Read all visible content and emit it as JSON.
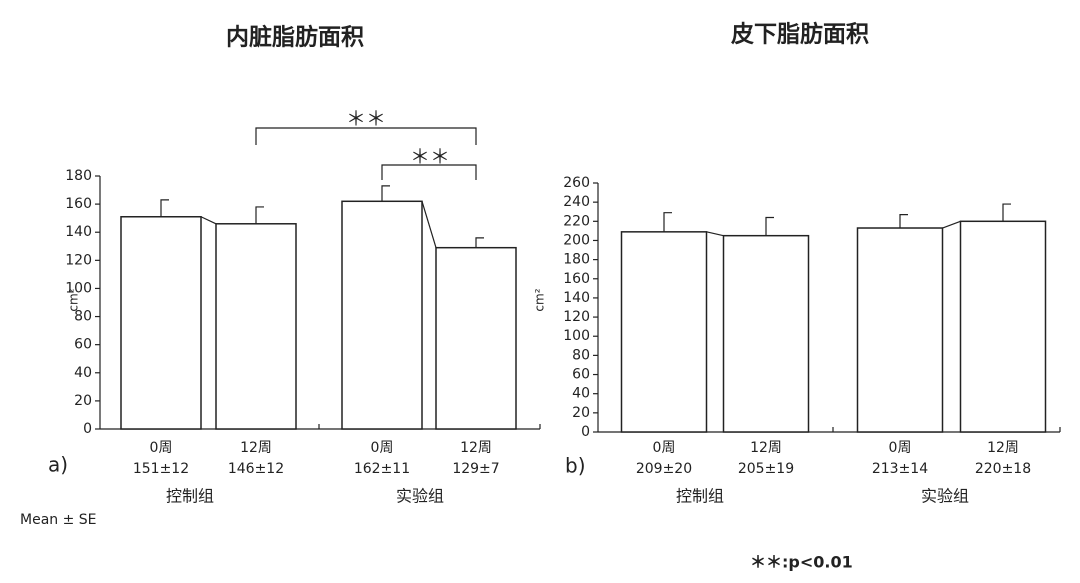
{
  "chart_data": [
    {
      "type": "bar",
      "title": "内脏脂肪面积",
      "panel_label": "a)",
      "ylabel": "cm²",
      "categories": [
        "0周",
        "12周",
        "0周",
        "12周"
      ],
      "values": [
        151,
        146,
        162,
        129
      ],
      "errors": [
        12,
        12,
        11,
        7
      ],
      "value_labels": [
        "151±12",
        "146±12",
        "162±11",
        "129±7"
      ],
      "groups": [
        "控制组",
        "实验组"
      ],
      "ylim": [
        0,
        180
      ],
      "yticks": [
        0,
        20,
        40,
        60,
        80,
        100,
        120,
        140,
        160,
        180
      ],
      "color": "#ffffff",
      "annotations": [
        "＊＊",
        "＊＊"
      ]
    },
    {
      "type": "bar",
      "title": "皮下脂肪面积",
      "panel_label": "b)",
      "ylabel": "cm²",
      "categories": [
        "0周",
        "12周",
        "0周",
        "12周"
      ],
      "values": [
        209,
        205,
        213,
        220
      ],
      "errors": [
        20,
        19,
        14,
        18
      ],
      "value_labels": [
        "209±20",
        "205±19",
        "213±14",
        "220±18"
      ],
      "groups": [
        "控制组",
        "实验组"
      ],
      "ylim": [
        0,
        260
      ],
      "yticks": [
        0,
        20,
        40,
        60,
        80,
        100,
        120,
        140,
        160,
        180,
        200,
        220,
        240,
        260
      ],
      "color": "#ffffff"
    }
  ],
  "notes": [
    "Mean ± SE",
    "＊＊:p<0.01"
  ]
}
